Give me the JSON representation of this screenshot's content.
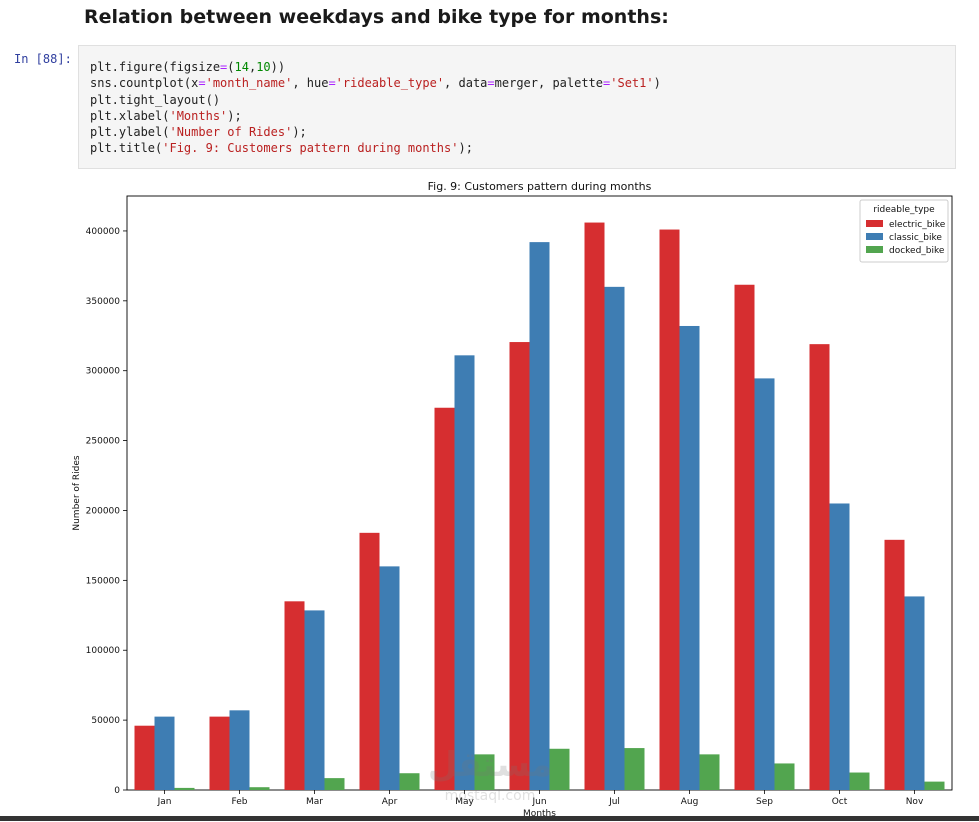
{
  "cell": {
    "heading": "Relation between weekdays and bike type for months:",
    "prompt": "In [88]:",
    "code_lines": [
      [
        {
          "t": "plt.figure(figsize"
        },
        {
          "t": "=",
          "c": "op"
        },
        {
          "t": "("
        },
        {
          "t": "14",
          "c": "num"
        },
        {
          "t": ","
        },
        {
          "t": "10",
          "c": "num"
        },
        {
          "t": "))"
        }
      ],
      [
        {
          "t": "sns.countplot(x"
        },
        {
          "t": "=",
          "c": "op"
        },
        {
          "t": "'month_name'",
          "c": "str"
        },
        {
          "t": ", hue"
        },
        {
          "t": "=",
          "c": "op"
        },
        {
          "t": "'rideable_type'",
          "c": "str"
        },
        {
          "t": ", data"
        },
        {
          "t": "=",
          "c": "op"
        },
        {
          "t": "merger, palette"
        },
        {
          "t": "=",
          "c": "op"
        },
        {
          "t": "'Set1'",
          "c": "str"
        },
        {
          "t": ")"
        }
      ],
      [
        {
          "t": "plt.tight_layout()"
        }
      ],
      [
        {
          "t": "plt.xlabel("
        },
        {
          "t": "'Months'",
          "c": "str"
        },
        {
          "t": ");"
        }
      ],
      [
        {
          "t": "plt.ylabel("
        },
        {
          "t": "'Number of Rides'",
          "c": "str"
        },
        {
          "t": ");"
        }
      ],
      [
        {
          "t": "plt.title("
        },
        {
          "t": "'Fig. 9: Customers pattern during months'",
          "c": "str"
        },
        {
          "t": ");"
        }
      ]
    ]
  },
  "chart_data": {
    "type": "bar",
    "title": "Fig. 9: Customers pattern during months",
    "xlabel": "Months",
    "ylabel": "Number of Rides",
    "ylim": [
      0,
      425000
    ],
    "yticks": [
      0,
      50000,
      100000,
      150000,
      200000,
      250000,
      300000,
      350000,
      400000
    ],
    "grid": false,
    "legend": {
      "title": "rideable_type",
      "placement": "top-right"
    },
    "categories": [
      "Jan",
      "Feb",
      "Mar",
      "Apr",
      "May",
      "Jun",
      "Jul",
      "Aug",
      "Sep",
      "Oct",
      "Nov"
    ],
    "series": [
      {
        "name": "electric_bike",
        "color": "#d62e30",
        "values": [
          46000,
          52500,
          135000,
          184000,
          273500,
          320500,
          406000,
          401000,
          361500,
          319000,
          179000
        ]
      },
      {
        "name": "classic_bike",
        "color": "#3e7db3",
        "values": [
          52500,
          57000,
          128500,
          160000,
          311000,
          392000,
          360000,
          332000,
          294500,
          205000,
          138500
        ]
      },
      {
        "name": "docked_bike",
        "color": "#52a54f",
        "values": [
          1500,
          2000,
          8500,
          12000,
          25500,
          29500,
          30000,
          25500,
          19000,
          12500,
          6000
        ]
      }
    ]
  },
  "watermark": {
    "line1": "مستقل",
    "line2": "mostaql.com"
  }
}
